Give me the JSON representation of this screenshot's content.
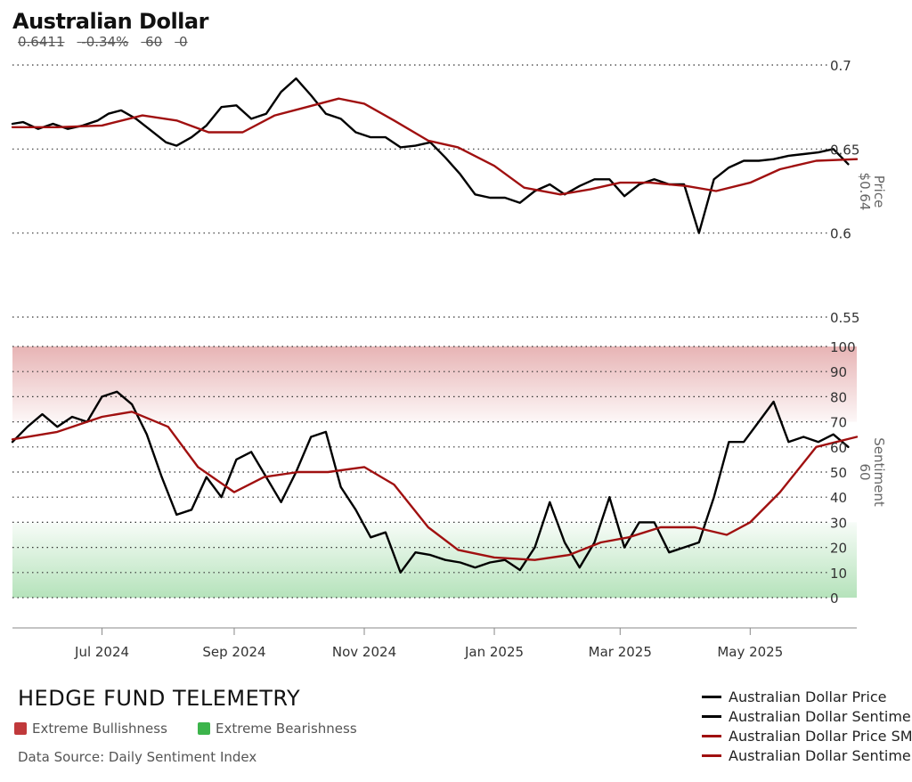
{
  "header": {
    "title": "Australian Dollar",
    "price": "0.6411",
    "change": "-0.34%",
    "sentiment": "60",
    "extra": "0"
  },
  "colors": {
    "price_line": "#000000",
    "sma_line": "#a01010",
    "bullish_zone": "#c0393b",
    "bearish_zone": "#3cb44b",
    "grid": "#333333"
  },
  "brand": {
    "name": "HEDGE FUND TELEMETRY",
    "extreme_bullish_label": "Extreme Bullishness",
    "extreme_bearish_label": "Extreme Bearishness",
    "data_source": "Data Source: Daily Sentiment Index"
  },
  "legend": [
    {
      "label": "Australian Dollar Price",
      "color": "#000000"
    },
    {
      "label": "Australian Dollar Sentiment",
      "color": "#000000"
    },
    {
      "label": "Australian Dollar Price SMA",
      "color": "#a01010"
    },
    {
      "label": "Australian Dollar Sentiment SMA",
      "color": "#a01010"
    }
  ],
  "chart_data": [
    {
      "type": "line",
      "panel": "price",
      "ylabel": "Price",
      "current_label": "$0.64",
      "ylim": [
        0.55,
        0.7
      ],
      "yticks": [
        "0.7",
        "0.65",
        "0.6",
        "0.55"
      ],
      "ytick_values": [
        0.7,
        0.65,
        0.6,
        0.55
      ],
      "x_labels": [
        "Jul 2024",
        "Sep 2024",
        "Nov 2024",
        "Jan 2025",
        "Mar 2025",
        "May 2025"
      ],
      "x_label_dates": [
        "2024-07-01",
        "2024-09-01",
        "2024-11-01",
        "2025-01-01",
        "2025-03-01",
        "2025-05-01"
      ],
      "x_range": [
        "2024-05-20",
        "2025-06-20"
      ],
      "grid": true,
      "series": [
        {
          "name": "Australian Dollar Price",
          "points": [
            [
              "2024-05-20",
              0.665
            ],
            [
              "2024-05-25",
              0.666
            ],
            [
              "2024-06-01",
              0.662
            ],
            [
              "2024-06-08",
              0.665
            ],
            [
              "2024-06-15",
              0.662
            ],
            [
              "2024-06-22",
              0.664
            ],
            [
              "2024-06-29",
              0.667
            ],
            [
              "2024-07-04",
              0.671
            ],
            [
              "2024-07-10",
              0.673
            ],
            [
              "2024-07-17",
              0.668
            ],
            [
              "2024-07-24",
              0.661
            ],
            [
              "2024-07-31",
              0.654
            ],
            [
              "2024-08-05",
              0.652
            ],
            [
              "2024-08-12",
              0.657
            ],
            [
              "2024-08-19",
              0.664
            ],
            [
              "2024-08-26",
              0.675
            ],
            [
              "2024-09-02",
              0.676
            ],
            [
              "2024-09-09",
              0.668
            ],
            [
              "2024-09-16",
              0.671
            ],
            [
              "2024-09-23",
              0.684
            ],
            [
              "2024-09-30",
              0.692
            ],
            [
              "2024-10-07",
              0.682
            ],
            [
              "2024-10-14",
              0.671
            ],
            [
              "2024-10-21",
              0.668
            ],
            [
              "2024-10-28",
              0.66
            ],
            [
              "2024-11-04",
              0.657
            ],
            [
              "2024-11-11",
              0.657
            ],
            [
              "2024-11-18",
              0.651
            ],
            [
              "2024-11-25",
              0.652
            ],
            [
              "2024-12-02",
              0.654
            ],
            [
              "2024-12-09",
              0.645
            ],
            [
              "2024-12-16",
              0.635
            ],
            [
              "2024-12-23",
              0.623
            ],
            [
              "2024-12-30",
              0.621
            ],
            [
              "2025-01-06",
              0.621
            ],
            [
              "2025-01-13",
              0.618
            ],
            [
              "2025-01-20",
              0.625
            ],
            [
              "2025-01-27",
              0.629
            ],
            [
              "2025-02-03",
              0.623
            ],
            [
              "2025-02-10",
              0.628
            ],
            [
              "2025-02-17",
              0.632
            ],
            [
              "2025-02-24",
              0.632
            ],
            [
              "2025-03-03",
              0.622
            ],
            [
              "2025-03-10",
              0.629
            ],
            [
              "2025-03-17",
              0.632
            ],
            [
              "2025-03-24",
              0.629
            ],
            [
              "2025-03-31",
              0.629
            ],
            [
              "2025-04-07",
              0.6
            ],
            [
              "2025-04-14",
              0.632
            ],
            [
              "2025-04-21",
              0.639
            ],
            [
              "2025-04-28",
              0.643
            ],
            [
              "2025-05-05",
              0.643
            ],
            [
              "2025-05-12",
              0.644
            ],
            [
              "2025-05-19",
              0.646
            ],
            [
              "2025-05-26",
              0.647
            ],
            [
              "2025-06-02",
              0.648
            ],
            [
              "2025-06-09",
              0.65
            ],
            [
              "2025-06-16",
              0.641
            ]
          ]
        },
        {
          "name": "Australian Dollar Price SMA",
          "points": [
            [
              "2024-05-20",
              0.663
            ],
            [
              "2024-06-10",
              0.663
            ],
            [
              "2024-07-01",
              0.664
            ],
            [
              "2024-07-20",
              0.67
            ],
            [
              "2024-08-05",
              0.667
            ],
            [
              "2024-08-20",
              0.66
            ],
            [
              "2024-09-05",
              0.66
            ],
            [
              "2024-09-20",
              0.67
            ],
            [
              "2024-10-05",
              0.675
            ],
            [
              "2024-10-20",
              0.68
            ],
            [
              "2024-11-01",
              0.677
            ],
            [
              "2024-11-15",
              0.667
            ],
            [
              "2024-12-01",
              0.655
            ],
            [
              "2024-12-15",
              0.651
            ],
            [
              "2025-01-01",
              0.64
            ],
            [
              "2025-01-15",
              0.627
            ],
            [
              "2025-02-01",
              0.623
            ],
            [
              "2025-02-15",
              0.626
            ],
            [
              "2025-03-01",
              0.63
            ],
            [
              "2025-03-15",
              0.63
            ],
            [
              "2025-04-01",
              0.628
            ],
            [
              "2025-04-15",
              0.625
            ],
            [
              "2025-05-01",
              0.63
            ],
            [
              "2025-05-15",
              0.638
            ],
            [
              "2025-06-01",
              0.643
            ],
            [
              "2025-06-20",
              0.644
            ]
          ]
        }
      ]
    },
    {
      "type": "line",
      "panel": "sentiment",
      "ylabel": "Sentiment",
      "current_label": "60",
      "ylim": [
        0,
        100
      ],
      "yticks": [
        "100",
        "90",
        "80",
        "70",
        "60",
        "50",
        "40",
        "30",
        "20",
        "10",
        "0"
      ],
      "ytick_values": [
        100,
        90,
        80,
        70,
        60,
        50,
        40,
        30,
        20,
        10,
        0
      ],
      "zones": [
        {
          "label": "Extreme Bullishness",
          "range": [
            70,
            100
          ],
          "color": "#c0393b"
        },
        {
          "label": "Extreme Bearishness",
          "range": [
            0,
            30
          ],
          "color": "#3cb44b"
        }
      ],
      "x_labels": [
        "Jul 2024",
        "Sep 2024",
        "Nov 2024",
        "Jan 2025",
        "Mar 2025",
        "May 2025"
      ],
      "x_range": [
        "2024-05-20",
        "2025-06-20"
      ],
      "grid": true,
      "series": [
        {
          "name": "Australian Dollar Sentiment",
          "points": [
            [
              "2024-05-20",
              62
            ],
            [
              "2024-05-27",
              68
            ],
            [
              "2024-06-03",
              73
            ],
            [
              "2024-06-10",
              68
            ],
            [
              "2024-06-17",
              72
            ],
            [
              "2024-06-24",
              70
            ],
            [
              "2024-07-01",
              80
            ],
            [
              "2024-07-08",
              82
            ],
            [
              "2024-07-15",
              77
            ],
            [
              "2024-07-22",
              65
            ],
            [
              "2024-07-29",
              48
            ],
            [
              "2024-08-05",
              33
            ],
            [
              "2024-08-12",
              35
            ],
            [
              "2024-08-19",
              48
            ],
            [
              "2024-08-26",
              40
            ],
            [
              "2024-09-02",
              55
            ],
            [
              "2024-09-09",
              58
            ],
            [
              "2024-09-16",
              48
            ],
            [
              "2024-09-23",
              38
            ],
            [
              "2024-09-30",
              50
            ],
            [
              "2024-10-07",
              64
            ],
            [
              "2024-10-14",
              66
            ],
            [
              "2024-10-21",
              44
            ],
            [
              "2024-10-28",
              35
            ],
            [
              "2024-11-04",
              24
            ],
            [
              "2024-11-11",
              26
            ],
            [
              "2024-11-18",
              10
            ],
            [
              "2024-11-25",
              18
            ],
            [
              "2024-12-02",
              17
            ],
            [
              "2024-12-09",
              15
            ],
            [
              "2024-12-16",
              14
            ],
            [
              "2024-12-23",
              12
            ],
            [
              "2024-12-30",
              14
            ],
            [
              "2025-01-06",
              15
            ],
            [
              "2025-01-13",
              11
            ],
            [
              "2025-01-20",
              20
            ],
            [
              "2025-01-27",
              38
            ],
            [
              "2025-02-03",
              22
            ],
            [
              "2025-02-10",
              12
            ],
            [
              "2025-02-17",
              22
            ],
            [
              "2025-02-24",
              40
            ],
            [
              "2025-03-03",
              20
            ],
            [
              "2025-03-10",
              30
            ],
            [
              "2025-03-17",
              30
            ],
            [
              "2025-03-24",
              18
            ],
            [
              "2025-03-31",
              20
            ],
            [
              "2025-04-07",
              22
            ],
            [
              "2025-04-14",
              40
            ],
            [
              "2025-04-21",
              62
            ],
            [
              "2025-04-28",
              62
            ],
            [
              "2025-05-05",
              70
            ],
            [
              "2025-05-12",
              78
            ],
            [
              "2025-05-19",
              62
            ],
            [
              "2025-05-26",
              64
            ],
            [
              "2025-06-02",
              62
            ],
            [
              "2025-06-09",
              65
            ],
            [
              "2025-06-16",
              60
            ]
          ]
        },
        {
          "name": "Australian Dollar Sentiment SMA",
          "points": [
            [
              "2024-05-20",
              63
            ],
            [
              "2024-06-10",
              66
            ],
            [
              "2024-07-01",
              72
            ],
            [
              "2024-07-15",
              74
            ],
            [
              "2024-08-01",
              68
            ],
            [
              "2024-08-15",
              52
            ],
            [
              "2024-09-01",
              42
            ],
            [
              "2024-09-15",
              48
            ],
            [
              "2024-10-01",
              50
            ],
            [
              "2024-10-15",
              50
            ],
            [
              "2024-11-01",
              52
            ],
            [
              "2024-11-15",
              45
            ],
            [
              "2024-12-01",
              28
            ],
            [
              "2024-12-15",
              19
            ],
            [
              "2025-01-01",
              16
            ],
            [
              "2025-01-20",
              15
            ],
            [
              "2025-02-05",
              17
            ],
            [
              "2025-02-20",
              22
            ],
            [
              "2025-03-05",
              24
            ],
            [
              "2025-03-20",
              28
            ],
            [
              "2025-04-05",
              28
            ],
            [
              "2025-04-20",
              25
            ],
            [
              "2025-05-01",
              30
            ],
            [
              "2025-05-15",
              42
            ],
            [
              "2025-06-01",
              60
            ],
            [
              "2025-06-20",
              64
            ]
          ]
        }
      ]
    }
  ]
}
